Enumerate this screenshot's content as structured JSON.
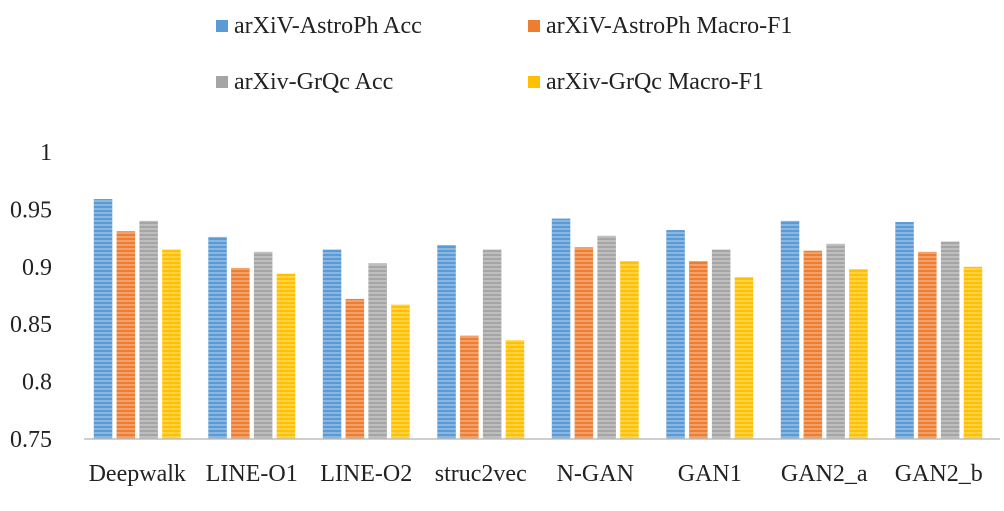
{
  "chart_data": {
    "type": "bar",
    "categories": [
      "Deepwalk",
      "LINE-O1",
      "LINE-O2",
      "struc2vec",
      "N-GAN",
      "GAN1",
      "GAN2_a",
      "GAN2_b"
    ],
    "series": [
      {
        "name": "arXiV-AstroPh Acc",
        "color": "#5b9bd5",
        "values": [
          0.959,
          0.926,
          0.915,
          0.919,
          0.942,
          0.932,
          0.94,
          0.939
        ]
      },
      {
        "name": "arXiV-AstroPh Macro-F1",
        "color": "#ed7d31",
        "values": [
          0.931,
          0.899,
          0.872,
          0.84,
          0.917,
          0.905,
          0.914,
          0.913
        ]
      },
      {
        "name": "arXiv-GrQc Acc",
        "color": "#a5a5a5",
        "values": [
          0.94,
          0.913,
          0.903,
          0.915,
          0.927,
          0.915,
          0.92,
          0.922
        ]
      },
      {
        "name": "arXiv-GrQc Macro-F1",
        "color": "#ffc000",
        "values": [
          0.915,
          0.894,
          0.867,
          0.836,
          0.905,
          0.891,
          0.898,
          0.9
        ]
      }
    ],
    "ylim": [
      0.75,
      1
    ],
    "yticks": [
      "0.75",
      "0.8",
      "0.85",
      "0.9",
      "0.95",
      "1"
    ],
    "gridlines": false,
    "legend_position": "top"
  }
}
